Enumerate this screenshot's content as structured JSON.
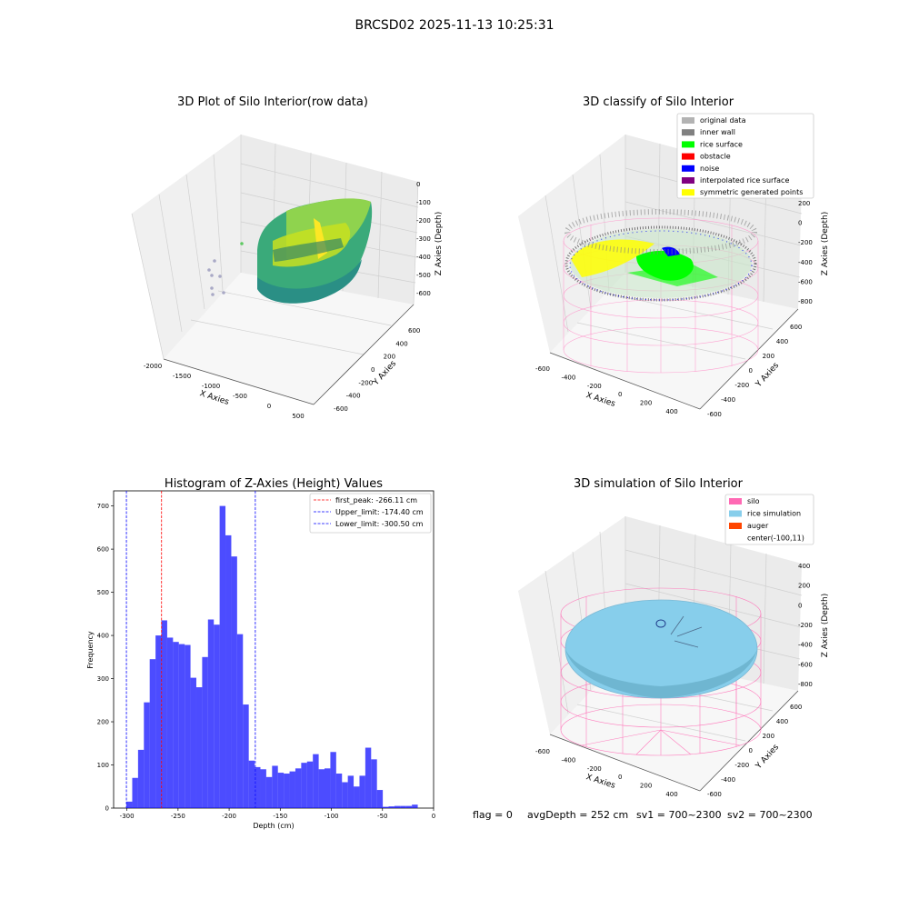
{
  "suptitle": "BRCSD02 2025-11-13 10:25:31",
  "status": {
    "flag": "flag = 0",
    "avg_depth": "avgDepth = 252 cm",
    "sv1": "sv1 = 700~2300",
    "sv2": "sv2 = 700~2300"
  },
  "chart_data": [
    {
      "type": "scatter",
      "title": "3D Plot of Silo Interior(row data)",
      "xlabel": "X Axies",
      "ylabel": "Y Axies",
      "zlabel": "Z Axies (Depth)",
      "x_ticks": [
        "-2000",
        "-1500",
        "-1000",
        "-500",
        "0",
        "500"
      ],
      "y_ticks": [
        "-600",
        "-400",
        "-200",
        "0",
        "200",
        "400",
        "600"
      ],
      "z_ticks": [
        "0",
        "-100",
        "-200",
        "-300",
        "-400",
        "-500",
        "-600"
      ],
      "colors": {
        "low": "#21908d",
        "mid": "#5ec962",
        "high": "#fde725",
        "outlier": "#a9a9c6"
      }
    },
    {
      "type": "scatter",
      "title": "3D classify of Silo Interior",
      "xlabel": "X Axies",
      "ylabel": "Y Axies",
      "zlabel": "Z Axies (Depth)",
      "x_ticks": [
        "-600",
        "-400",
        "-200",
        "0",
        "200",
        "400"
      ],
      "y_ticks": [
        "-600",
        "-400",
        "-200",
        "0",
        "200",
        "400",
        "600"
      ],
      "z_ticks": [
        "200",
        "0",
        "-200",
        "-400",
        "-600",
        "-800"
      ],
      "legend_position": "top-right",
      "legend": [
        {
          "label": "original data",
          "color": "#b3b3b3"
        },
        {
          "label": "inner wall",
          "color": "#808080"
        },
        {
          "label": "rice surface",
          "color": "#00ff00"
        },
        {
          "label": "obstacle",
          "color": "#ff0000"
        },
        {
          "label": "noise",
          "color": "#0000ff"
        },
        {
          "label": "interpolated rice surface",
          "color": "#800080"
        },
        {
          "label": "symmetric generated points",
          "color": "#ffff00"
        }
      ]
    },
    {
      "type": "bar",
      "title": "Histogram of Z-Axies (Height) Values",
      "xlabel": "Depth (cm)",
      "ylabel": "Frequency",
      "xlim": [
        -313,
        0
      ],
      "ylim": [
        0,
        735
      ],
      "x_ticks": [
        -300,
        -250,
        -200,
        -150,
        -100,
        -50,
        0
      ],
      "y_ticks": [
        0,
        100,
        200,
        300,
        400,
        500,
        600,
        700
      ],
      "bin_start": -300.5,
      "bin_width": 5.7,
      "values": [
        15,
        70,
        135,
        245,
        345,
        400,
        435,
        395,
        385,
        380,
        378,
        302,
        280,
        350,
        437,
        425,
        700,
        632,
        583,
        403,
        240,
        110,
        95,
        90,
        72,
        98,
        82,
        80,
        85,
        92,
        105,
        108,
        125,
        90,
        92,
        130,
        80,
        60,
        75,
        50,
        75,
        140,
        113,
        42,
        3,
        4,
        5,
        5,
        5,
        8
      ],
      "bar_color": "#0000ff",
      "vlines": [
        {
          "label": "first_peak: -266.11 cm",
          "x": -266.11,
          "color": "#ff0000"
        },
        {
          "label": "Upper_limit: -174.40 cm",
          "x": -174.4,
          "color": "#0000ff"
        },
        {
          "label": "Lower_limit: -300.50 cm",
          "x": -300.5,
          "color": "#0000ff"
        }
      ],
      "legend_position": "top-right"
    },
    {
      "type": "scatter",
      "title": "3D simulation of Silo Interior",
      "xlabel": "X Axies",
      "ylabel": "Y Axies",
      "zlabel": "Z Axies (Depth)",
      "x_ticks": [
        "-600",
        "-400",
        "-200",
        "0",
        "200",
        "400"
      ],
      "y_ticks": [
        "-600",
        "-400",
        "-200",
        "0",
        "200",
        "400",
        "600"
      ],
      "z_ticks": [
        "400",
        "200",
        "0",
        "-200",
        "-400",
        "-600",
        "-800"
      ],
      "legend_position": "top-right",
      "legend": [
        {
          "label": "silo",
          "color": "#ff69b4"
        },
        {
          "label": "rice simulation",
          "color": "#87ceeb"
        },
        {
          "label": "auger",
          "color": "#ff4500"
        },
        {
          "label": "center(-100,11)",
          "color": "#ffffff"
        }
      ]
    }
  ]
}
